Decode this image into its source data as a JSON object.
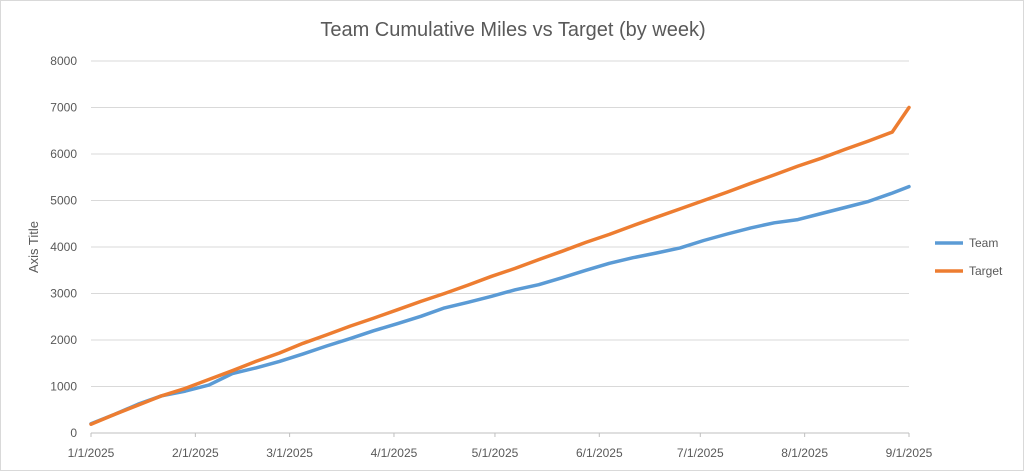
{
  "chart_data": {
    "type": "line",
    "title": "Team Cumulative Miles vs Target (by week)",
    "xlabel": "",
    "ylabel": "Axis Title",
    "ylim": [
      0,
      8000
    ],
    "yticks": [
      0,
      1000,
      2000,
      3000,
      4000,
      5000,
      6000,
      7000,
      8000
    ],
    "xlim": [
      "2025-01-01",
      "2025-09-01"
    ],
    "xticks": [
      "1/1/2025",
      "2/1/2025",
      "3/1/2025",
      "4/1/2025",
      "5/1/2025",
      "6/1/2025",
      "7/1/2025",
      "8/1/2025",
      "9/1/2025"
    ],
    "grid": true,
    "legend": "right",
    "x": [
      "2025-01-01",
      "2025-01-08",
      "2025-01-15",
      "2025-01-22",
      "2025-01-29",
      "2025-02-05",
      "2025-02-12",
      "2025-02-19",
      "2025-02-26",
      "2025-03-05",
      "2025-03-12",
      "2025-03-19",
      "2025-03-26",
      "2025-04-02",
      "2025-04-09",
      "2025-04-16",
      "2025-04-23",
      "2025-04-30",
      "2025-05-07",
      "2025-05-14",
      "2025-05-21",
      "2025-05-28",
      "2025-06-04",
      "2025-06-11",
      "2025-06-18",
      "2025-06-25",
      "2025-07-02",
      "2025-07-09",
      "2025-07-16",
      "2025-07-23",
      "2025-07-30",
      "2025-08-06",
      "2025-08-13",
      "2025-08-20",
      "2025-08-27",
      "2025-09-01"
    ],
    "series": [
      {
        "name": "Team",
        "color": "#5b9bd5",
        "values": [
          200,
          400,
          620,
          800,
          900,
          1030,
          1280,
          1400,
          1540,
          1700,
          1870,
          2030,
          2200,
          2350,
          2510,
          2690,
          2810,
          2940,
          3080,
          3190,
          3340,
          3500,
          3650,
          3770,
          3870,
          3980,
          4140,
          4280,
          4410,
          4520,
          4590,
          4720,
          4850,
          4980,
          5160,
          5300
        ]
      },
      {
        "name": "Target",
        "color": "#ed7d31",
        "values": [
          190,
          400,
          600,
          800,
          960,
          1150,
          1340,
          1540,
          1720,
          1930,
          2110,
          2300,
          2470,
          2650,
          2830,
          3000,
          3180,
          3370,
          3540,
          3730,
          3910,
          4100,
          4270,
          4460,
          4640,
          4820,
          5000,
          5180,
          5370,
          5550,
          5740,
          5910,
          6100,
          6280,
          6470,
          7000
        ]
      }
    ]
  }
}
